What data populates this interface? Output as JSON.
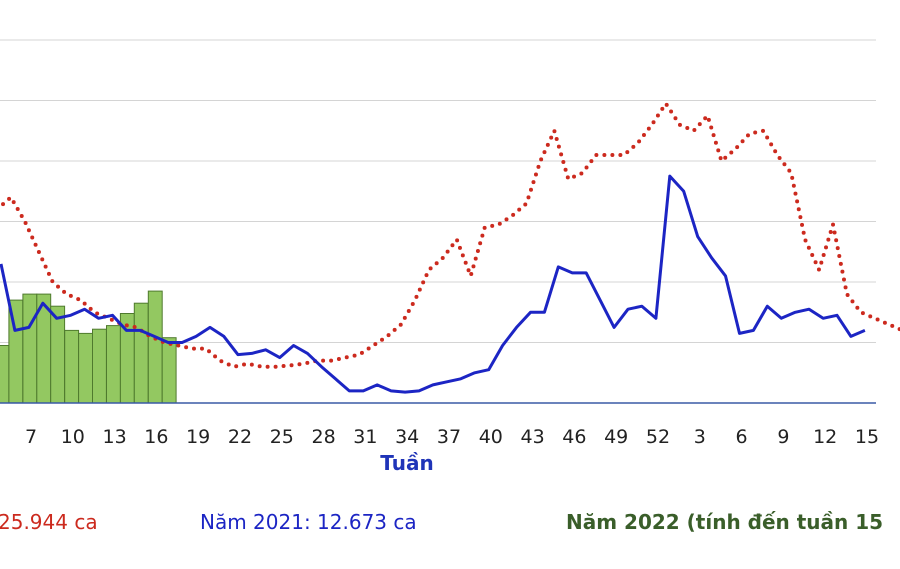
{
  "chart_data": {
    "type": "line",
    "xlabel": "Tuần",
    "ylabel": "",
    "ylim": [
      0,
      6
    ],
    "grid": true,
    "x_tick_labels": [
      "7",
      "10",
      "13",
      "16",
      "19",
      "22",
      "25",
      "28",
      "31",
      "34",
      "37",
      "40",
      "43",
      "46",
      "49",
      "52",
      "3",
      "6",
      "9",
      "12",
      "15"
    ],
    "legend_position": "bottom",
    "series": [
      {
        "name": "25.944 ca",
        "style": "dotted",
        "color": "#cc2a1e",
        "values": [
          3.2,
          3.4,
          3.0,
          2.5,
          2.0,
          1.8,
          1.7,
          1.5,
          1.4,
          1.3,
          1.25,
          1.1,
          1.0,
          0.95,
          0.9,
          0.9,
          0.7,
          0.6,
          0.65,
          0.6,
          0.6,
          0.62,
          0.65,
          0.7,
          0.7,
          0.75,
          0.8,
          0.95,
          1.1,
          1.3,
          1.7,
          2.2,
          2.4,
          2.7,
          2.1,
          2.9,
          2.95,
          3.1,
          3.3,
          4.0,
          4.5,
          3.7,
          3.8,
          4.1,
          4.1,
          4.1,
          4.3,
          4.6,
          4.95,
          4.6,
          4.5,
          4.75,
          4.0,
          4.2,
          4.45,
          4.5,
          4.1,
          3.8,
          2.7,
          2.2,
          2.95,
          1.8,
          1.5,
          1.4,
          1.3,
          1.2,
          1.0,
          1.0,
          0.8,
          0.6,
          0.55
        ]
      },
      {
        "name": "Năm 2021: 12.673 ca",
        "style": "solid",
        "color": "#1c25c4",
        "values": [
          2.3,
          1.2,
          1.25,
          1.65,
          1.4,
          1.45,
          1.55,
          1.4,
          1.45,
          1.2,
          1.2,
          1.1,
          1.0,
          1.0,
          1.1,
          1.25,
          1.1,
          0.8,
          0.82,
          0.88,
          0.75,
          0.95,
          0.82,
          0.6,
          0.4,
          0.2,
          0.2,
          0.3,
          0.2,
          0.18,
          0.2,
          0.3,
          0.35,
          0.4,
          0.5,
          0.55,
          0.95,
          1.25,
          1.5,
          1.5,
          2.25,
          2.15,
          2.15,
          1.7,
          1.25,
          1.55,
          1.6,
          1.4,
          3.75,
          3.5,
          2.75,
          2.4,
          2.1,
          1.15,
          1.2,
          1.6,
          1.4,
          1.5,
          1.55,
          1.4,
          1.45,
          1.1,
          1.2
        ]
      },
      {
        "name": "Năm 2022 (tính đến tuần 15",
        "style": "bar",
        "color": "#93c861",
        "values": [
          0.95,
          1.7,
          1.8,
          1.8,
          1.6,
          1.2,
          1.15,
          1.22,
          1.28,
          1.48,
          1.65,
          1.85,
          1.08
        ]
      }
    ]
  }
}
